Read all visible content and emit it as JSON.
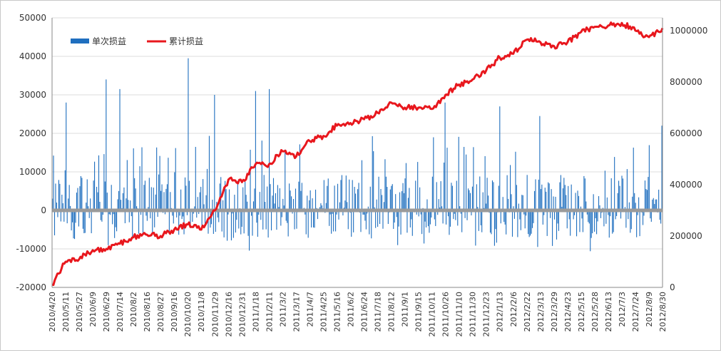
{
  "chart_data": {
    "type": "bar+line",
    "title": "",
    "xlabel": "",
    "ylabel_left": "",
    "ylabel_right": "",
    "y_left_lim": [
      -20000,
      50000
    ],
    "y_left_ticks": [
      "-20000",
      "-10000",
      "0",
      "10000",
      "20000",
      "30000",
      "40000",
      "50000"
    ],
    "y_right_lim": [
      0,
      1050000
    ],
    "y_right_ticks": [
      "0",
      "200000",
      "400000",
      "600000",
      "800000",
      "1000000"
    ],
    "legend_position": "top-left",
    "grid": "horizontal",
    "x_tick_labels": [
      "2010/4/20",
      "2010/5/11",
      "2010/5/27",
      "2010/6/9",
      "2010/6/29",
      "2010/7/14",
      "2010/8/2",
      "2010/8/16",
      "2010/8/27",
      "2010/9/16",
      "2010/10/20",
      "2010/11/8",
      "2010/11/29",
      "2010/12/16",
      "2010/12/31",
      "2011/1/18",
      "2011/2/11",
      "2011/3/2",
      "2011/3/17",
      "2011/4/7",
      "2011/4/25",
      "2011/5/16",
      "2011/6/2",
      "2011/6/24",
      "2011/7/18",
      "2011/8/12",
      "2011/9/1",
      "2011/9/15",
      "2011/10/11",
      "2011/10/26",
      "2011/11/10",
      "2011/11/30",
      "2011/12/23",
      "2012/1/13",
      "2012/2/6",
      "2012/2/22",
      "2012/3/13",
      "2012/3/29",
      "2012/4/23",
      "2012/5/15",
      "2012/5/28",
      "2012/6/13",
      "2012/7/3",
      "2012/7/24",
      "2012/8/9",
      "2012/8/30"
    ],
    "series": [
      {
        "name": "单次损益",
        "type": "bar",
        "axis": "left",
        "color": "#1F6FBF",
        "n_points": 580,
        "value_range": [
          -13000,
          39500
        ],
        "spikes": [
          {
            "x": "2010/5/11",
            "value": 28000
          },
          {
            "x": "2010/6/29",
            "value": 34000
          },
          {
            "x": "2010/7/14",
            "value": 31500
          },
          {
            "x": "2010/10/20",
            "value": 39500
          },
          {
            "x": "2010/11/29",
            "value": 30000
          },
          {
            "x": "2011/1/18",
            "value": 31000
          },
          {
            "x": "2011/2/11",
            "value": 31500
          },
          {
            "x": "2011/10/26",
            "value": 28000
          },
          {
            "x": "2012/1/13",
            "value": 27000
          },
          {
            "x": "2012/3/13",
            "value": 24500
          },
          {
            "x": "2012/8/30",
            "value": 22000
          }
        ]
      },
      {
        "name": "累计损益",
        "type": "line",
        "axis": "right",
        "color": "#E8171D",
        "points": [
          {
            "x": "2010/4/20",
            "y": 10000
          },
          {
            "x": "2010/5/11",
            "y": 100000
          },
          {
            "x": "2010/5/27",
            "y": 110000
          },
          {
            "x": "2010/6/9",
            "y": 145000
          },
          {
            "x": "2010/6/29",
            "y": 150000
          },
          {
            "x": "2010/7/14",
            "y": 170000
          },
          {
            "x": "2010/8/2",
            "y": 195000
          },
          {
            "x": "2010/8/16",
            "y": 205000
          },
          {
            "x": "2010/8/27",
            "y": 200000
          },
          {
            "x": "2010/9/16",
            "y": 225000
          },
          {
            "x": "2010/10/20",
            "y": 245000
          },
          {
            "x": "2010/11/8",
            "y": 225000
          },
          {
            "x": "2010/11/29",
            "y": 300000
          },
          {
            "x": "2010/12/16",
            "y": 420000
          },
          {
            "x": "2010/12/31",
            "y": 410000
          },
          {
            "x": "2011/1/18",
            "y": 480000
          },
          {
            "x": "2011/2/11",
            "y": 480000
          },
          {
            "x": "2011/3/2",
            "y": 530000
          },
          {
            "x": "2011/3/17",
            "y": 510000
          },
          {
            "x": "2011/4/7",
            "y": 570000
          },
          {
            "x": "2011/4/25",
            "y": 590000
          },
          {
            "x": "2011/5/16",
            "y": 630000
          },
          {
            "x": "2011/6/2",
            "y": 640000
          },
          {
            "x": "2011/6/24",
            "y": 655000
          },
          {
            "x": "2011/7/18",
            "y": 680000
          },
          {
            "x": "2011/8/12",
            "y": 720000
          },
          {
            "x": "2011/9/1",
            "y": 700000
          },
          {
            "x": "2011/9/15",
            "y": 700000
          },
          {
            "x": "2011/10/11",
            "y": 695000
          },
          {
            "x": "2011/10/26",
            "y": 750000
          },
          {
            "x": "2011/11/10",
            "y": 790000
          },
          {
            "x": "2011/11/30",
            "y": 810000
          },
          {
            "x": "2011/12/23",
            "y": 845000
          },
          {
            "x": "2012/1/13",
            "y": 895000
          },
          {
            "x": "2012/2/6",
            "y": 910000
          },
          {
            "x": "2012/2/22",
            "y": 965000
          },
          {
            "x": "2012/3/13",
            "y": 955000
          },
          {
            "x": "2012/3/29",
            "y": 940000
          },
          {
            "x": "2012/4/23",
            "y": 955000
          },
          {
            "x": "2012/5/15",
            "y": 995000
          },
          {
            "x": "2012/5/28",
            "y": 1015000
          },
          {
            "x": "2012/6/13",
            "y": 1020000
          },
          {
            "x": "2012/7/3",
            "y": 1030000
          },
          {
            "x": "2012/7/24",
            "y": 1000000
          },
          {
            "x": "2012/8/9",
            "y": 975000
          },
          {
            "x": "2012/8/30",
            "y": 1010000
          }
        ]
      }
    ]
  }
}
